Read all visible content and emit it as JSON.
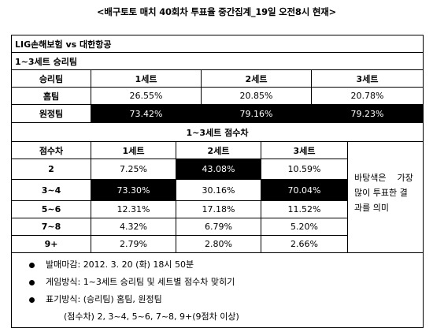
{
  "title": "<배구토토 매치 40회차 투표율 중간집계_19일 오전8시 현재>",
  "match": "LIG손해보험  vs  대한항공",
  "section1": {
    "heading": "1~3세트 승리팀",
    "headers": [
      "승리팀",
      "1세트",
      "2세트",
      "3세트"
    ],
    "rows": [
      {
        "label": "홈팀",
        "values": [
          "26.55%",
          "20.85%",
          "20.78%"
        ]
      },
      {
        "label": "원정팀",
        "values": [
          "73.42%",
          "79.16%",
          "79.23%"
        ]
      }
    ]
  },
  "section2": {
    "heading": "1~3세트 점수차",
    "headers": [
      "점수차",
      "1세트",
      "2세트",
      "3세트"
    ],
    "rows": [
      {
        "label": "2",
        "values": [
          "7.25%",
          "43.08%",
          "10.59%"
        ]
      },
      {
        "label": "3~4",
        "values": [
          "73.30%",
          "30.16%",
          "70.04%"
        ]
      },
      {
        "label": "5~6",
        "values": [
          "12.31%",
          "17.18%",
          "11.52%"
        ]
      },
      {
        "label": "7~8",
        "values": [
          "4.32%",
          "6.79%",
          "5.20%"
        ]
      },
      {
        "label": "9+",
        "values": [
          "2.79%",
          "2.80%",
          "2.66%"
        ]
      }
    ],
    "note_lines": [
      "바탕색은    가장",
      "많이 투표한 결",
      "과를 의미"
    ]
  },
  "bullets": [
    {
      "label": "발매마감:",
      "value": "2012. 3. 20 (화) 18시 50분"
    },
    {
      "label": "게임방식:",
      "value": "1~3세트 승리팀 및 세트별 점수차 맞히기"
    },
    {
      "label": "표기방식:",
      "value": "(승리팀) 홈팀, 원정팀"
    }
  ],
  "bullet_extra": "(점수차) 2, 3~4, 5~6, 7~8, 9+(9점차 이상)",
  "colors": {
    "highlight_bg": "#000000",
    "highlight_text": "#ffffff"
  }
}
